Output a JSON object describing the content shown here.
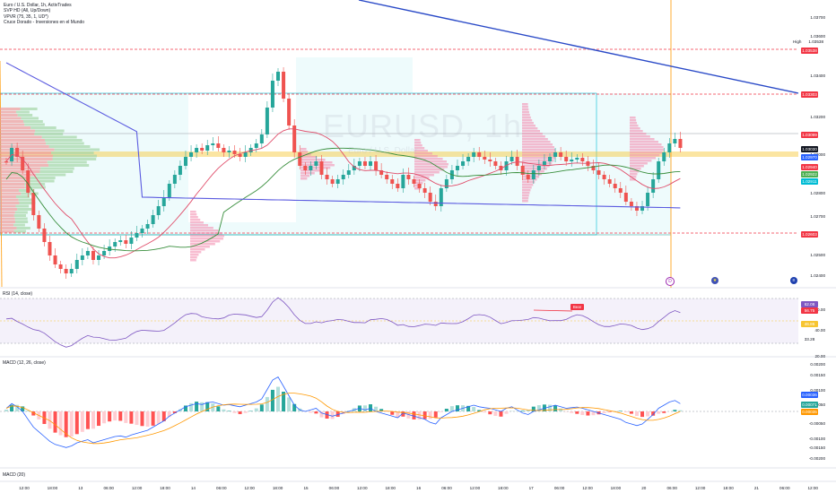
{
  "symbol_watermark": "EURUSD, 1h",
  "watermark_sub": "Euro / U.S. Dollar",
  "legend": {
    "title": "Euro / U.S. Dollar, 1h, ActivTrades",
    "ind1": "SVP HD (All, Up/Down)",
    "ind2": "VPVR (75, 35, 1, UD*)",
    "ind3": "Cruce Dorado - Inversiones en el Mundo"
  },
  "rsi_title": "RSI (14, close)",
  "macd_title": "MACD (12, 26, close)",
  "macd_bottom_title": "MACD (20)",
  "bear_label": "Bear",
  "high_label": "High",
  "price_axis": [
    "1.03700",
    "1.03600",
    "1.03400",
    "1.03200",
    "1.03000",
    "1.02800",
    "1.02700",
    "1.02500",
    "1.02400"
  ],
  "price_badges": [
    {
      "text": "1.03538",
      "color": "#f23645"
    },
    {
      "text": "1.03303",
      "color": "#f23645"
    },
    {
      "text": "1.03099",
      "color": "#f23645"
    },
    {
      "text": "1.03030",
      "color": "#131722"
    },
    {
      "text": "1.02970",
      "color": "#2962ff"
    },
    {
      "text": "1.02940",
      "color": "#f23645"
    },
    {
      "text": "1.02922",
      "color": "#4caf50"
    },
    {
      "text": "1.02911",
      "color": "#00bcd4"
    },
    {
      "text": "1.02603",
      "color": "#f23645"
    }
  ],
  "high_value": "1.03538",
  "rsi_axis": [
    "60.00",
    "40.00",
    "20.00"
  ],
  "rsi_badges": [
    {
      "text": "62.08",
      "color": "#7e57c2"
    },
    {
      "text": "56.75",
      "color": "#f23645"
    },
    {
      "text": "46.86",
      "color": "#f7c531"
    },
    {
      "text": "33.28",
      "color": "#ffffff"
    }
  ],
  "macd_axis": [
    "0.00200",
    "0.00150",
    "0.00100",
    "0.00050",
    "-0.00050",
    "-0.00100",
    "-0.00150",
    "-0.00200"
  ],
  "macd_badges": [
    {
      "text": "0.00036",
      "color": "#2962ff"
    },
    {
      "text": "0.00071",
      "color": "#26a69a"
    },
    {
      "text": "0.00035",
      "color": "#ff9800"
    }
  ],
  "time_axis": [
    "12:00",
    "18:00",
    "13",
    "06:00",
    "12:00",
    "18:00",
    "14",
    "06:00",
    "12:00",
    "18:00",
    "15",
    "06:00",
    "12:00",
    "18:00",
    "16",
    "06:00",
    "12:00",
    "18:00",
    "17",
    "06:00",
    "12:00",
    "18:00",
    "20",
    "06:00",
    "12:00",
    "18:00",
    "21",
    "06:00",
    "12:00"
  ],
  "events": [
    {
      "icon": "earnings-icon",
      "glyph": "D"
    },
    {
      "icon": "flag-eu-icon",
      "glyph": "★"
    },
    {
      "icon": "flag-us-icon",
      "glyph": "≡"
    }
  ],
  "colors": {
    "up": "#26a69a",
    "down": "#ef5350",
    "ma200": "#5b5be0",
    "ma50": "#388e3c",
    "ma20": "#e04d6a",
    "trend": "#2949c7",
    "hline": "#f23645",
    "poc": "#f7c531",
    "box": "#00bcd4",
    "rsi_bg": "#ede7f6",
    "rsi_line": "#7e57c2"
  }
}
